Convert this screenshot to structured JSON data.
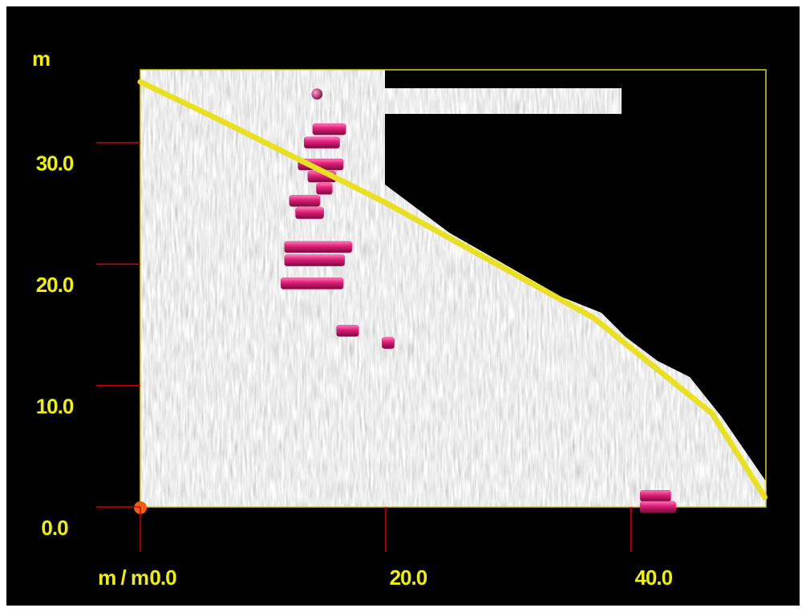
{
  "chart_data": {
    "type": "scatter",
    "x_label": "m / m",
    "y_label": "m",
    "xlim": [
      0,
      51
    ],
    "ylim": [
      0,
      36
    ],
    "xticks": [
      {
        "value": 0,
        "label": "0.0"
      },
      {
        "value": 20,
        "label": "20.0"
      },
      {
        "value": 40,
        "label": "40.0"
      }
    ],
    "yticks": [
      {
        "value": 0,
        "label": "0.0"
      },
      {
        "value": 10,
        "label": "10.0"
      },
      {
        "value": 20,
        "label": "20.0"
      },
      {
        "value": 30,
        "label": "30.0"
      }
    ],
    "line": {
      "color": "#e8e020",
      "x": [
        0,
        6.2,
        19.9,
        36.9,
        46.6,
        50.9
      ],
      "y": [
        35.0,
        32.0,
        25.1,
        15.6,
        7.7,
        0.8
      ]
    },
    "targets": {
      "color": "#e0207a",
      "x": [
        14.4,
        15.4,
        14.8,
        14.7,
        14.8,
        15.0,
        13.4,
        13.8,
        14.5,
        14.2,
        14.0,
        16.9,
        20.2,
        42.0,
        42.2
      ],
      "y": [
        34.0,
        31.1,
        30.0,
        28.2,
        27.2,
        26.2,
        25.2,
        24.2,
        21.4,
        20.3,
        18.4,
        14.5,
        13.5,
        0.9,
        0.0
      ],
      "lengths": [
        0.9,
        2.7,
        2.9,
        3.7,
        2.3,
        1.3,
        2.5,
        2.3,
        5.5,
        4.9,
        5.1,
        1.8,
        1.0,
        2.5,
        2.9
      ]
    }
  }
}
